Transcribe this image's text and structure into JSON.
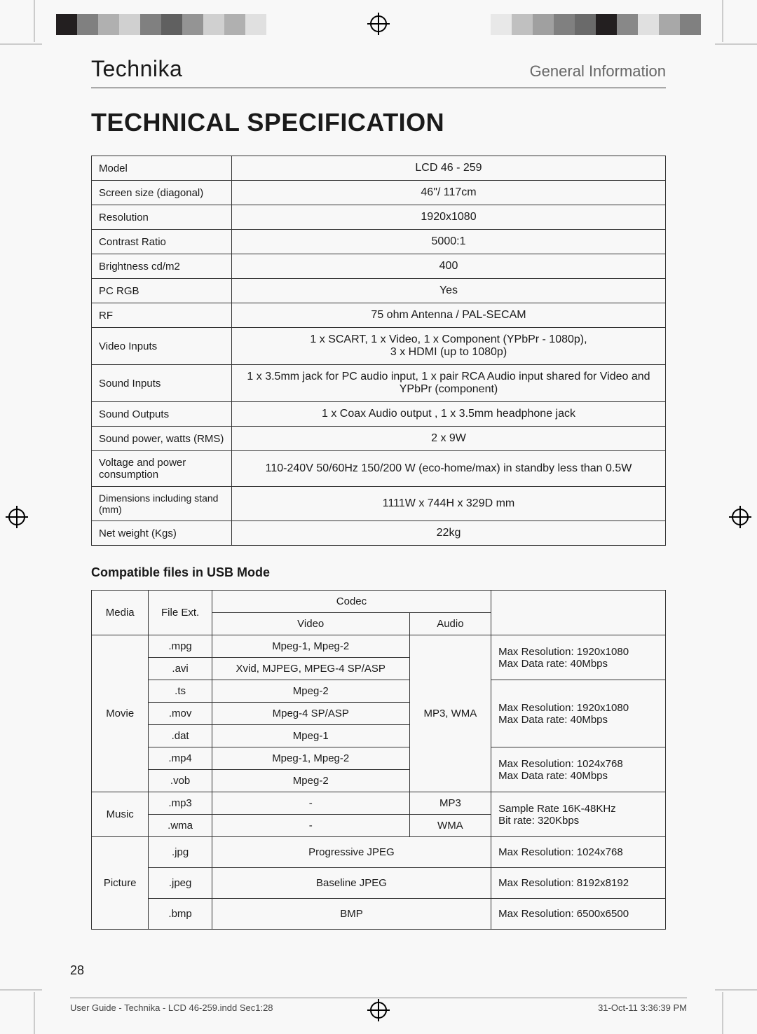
{
  "brand": "Technika",
  "section_label": "General Information",
  "title": "TECHNICAL SPECIFICATION",
  "spec_rows": [
    {
      "label": "Model",
      "value": "LCD 46 - 259"
    },
    {
      "label": "Screen size (diagonal)",
      "value": "46\"/ 117cm"
    },
    {
      "label": "Resolution",
      "value": "1920x1080"
    },
    {
      "label": "Contrast Ratio",
      "value": "5000:1"
    },
    {
      "label": "Brightness cd/m2",
      "value": "400"
    },
    {
      "label": "PC RGB",
      "value": "Yes"
    },
    {
      "label": "RF",
      "value": "75 ohm Antenna / PAL-SECAM"
    },
    {
      "label": "Video Inputs",
      "value": "1 x SCART, 1 x Video, 1 x Component (YPbPr - 1080p),\n3 x HDMI (up to 1080p)"
    },
    {
      "label": "Sound Inputs",
      "value": "1 x 3.5mm jack for PC audio input, 1 x pair RCA Audio input shared for Video and YPbPr (component)"
    },
    {
      "label": "Sound Outputs",
      "value": "1 x Coax Audio output , 1 x 3.5mm headphone jack"
    },
    {
      "label": "Sound power, watts (RMS)",
      "value": "2 x 9W"
    },
    {
      "label": "Voltage and power consumption",
      "value": "110-240V 50/60Hz 150/200 W (eco-home/max) in standby less than 0.5W"
    },
    {
      "label": "Dimensions including stand (mm)",
      "value": "1111W x 744H x 329D mm",
      "small": true
    },
    {
      "label": "Net weight (Kgs)",
      "value": "22kg"
    }
  ],
  "usb_heading": "Compatible files in USB Mode",
  "usb": {
    "col_media": "Media",
    "col_ext": "File Ext.",
    "col_codec": "Codec",
    "col_video": "Video",
    "col_audio": "Audio",
    "movie_label": "Movie",
    "music_label": "Music",
    "picture_label": "Picture",
    "audio_shared": "MP3, WMA",
    "movie_rows": [
      {
        "ext": ".mpg",
        "video": "Mpeg-1, Mpeg-2"
      },
      {
        "ext": ".avi",
        "video": "Xvid, MJPEG, MPEG-4 SP/ASP"
      },
      {
        "ext": ".ts",
        "video": "Mpeg-2"
      },
      {
        "ext": ".mov",
        "video": "Mpeg-4 SP/ASP"
      },
      {
        "ext": ".dat",
        "video": "Mpeg-1"
      },
      {
        "ext": ".mp4",
        "video": "Mpeg-1, Mpeg-2"
      },
      {
        "ext": ".vob",
        "video": "Mpeg-2"
      }
    ],
    "movie_remarks": [
      "Max Resolution: 1920x1080\nMax Data rate: 40Mbps",
      "Max Resolution: 1920x1080\nMax Data rate: 40Mbps",
      "Max Resolution: 1024x768\nMax Data rate: 40Mbps"
    ],
    "music_rows": [
      {
        "ext": ".mp3",
        "video": "-",
        "audio": "MP3"
      },
      {
        "ext": ".wma",
        "video": "-",
        "audio": "WMA"
      }
    ],
    "music_remark": "Sample Rate 16K-48KHz\nBit rate: 320Kbps",
    "picture_rows": [
      {
        "ext": ".jpg",
        "codec": "Progressive JPEG",
        "remark": "Max Resolution: 1024x768"
      },
      {
        "ext": ".jpeg",
        "codec": "Baseline JPEG",
        "remark": "Max Resolution: 8192x8192"
      },
      {
        "ext": ".bmp",
        "codec": "BMP",
        "remark": "Max Resolution: 6500x6500"
      }
    ]
  },
  "page_number": "28",
  "footer_left": "User Guide - Technika - LCD 46-259.indd   Sec1:28",
  "footer_right": "31-Oct-11   3:36:39 PM",
  "colorbar_left": [
    "#231f20",
    "#808080",
    "#b0b0b0",
    "#d0d0d0",
    "#808080",
    "#606060",
    "#949494",
    "#d0d0d0",
    "#b0b0b0",
    "#e0e0e0"
  ],
  "colorbar_right": [
    "#e8e8e8",
    "#c0c0c0",
    "#a0a0a0",
    "#808080",
    "#6a6a6a",
    "#231f20",
    "#888888",
    "#e0e0e0",
    "#a8a8a8",
    "#808080"
  ]
}
